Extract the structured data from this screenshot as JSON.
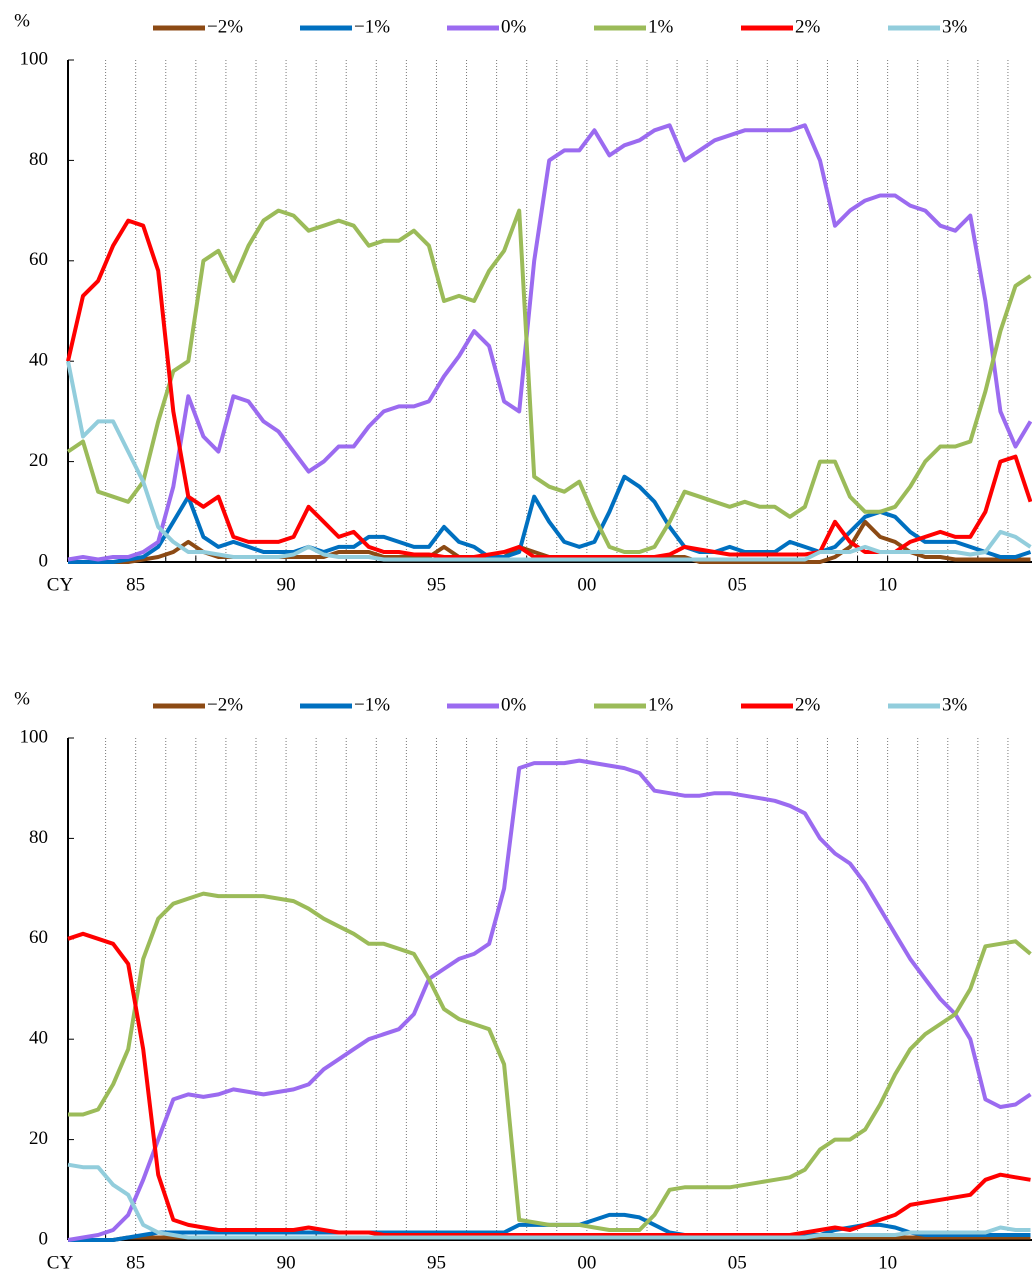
{
  "chart_data": [
    {
      "type": "line",
      "ylabel": "%",
      "xlabel": "CY",
      "legend": "top",
      "grid": true,
      "xlim": [
        1982.75,
        2014.8
      ],
      "ylim": [
        0,
        100
      ],
      "yticks": [
        0,
        20,
        40,
        60,
        80,
        100
      ],
      "xticks": [
        {
          "value": 1985,
          "label": "85"
        },
        {
          "value": 1990,
          "label": "90"
        },
        {
          "value": 1995,
          "label": "95"
        },
        {
          "value": 2000,
          "label": "00"
        },
        {
          "value": 2005,
          "label": "05"
        },
        {
          "value": 2010,
          "label": "10"
        }
      ],
      "xgrid": [
        1984,
        1985,
        1986,
        1987,
        1988,
        1989,
        1990,
        1991,
        1992,
        1993,
        1994,
        1995,
        1996,
        1997,
        1998,
        1999,
        2000,
        2001,
        2002,
        2003,
        2004,
        2005,
        2006,
        2007,
        2008,
        2009,
        2010,
        2011,
        2012,
        2013,
        2014
      ],
      "x": [
        1982.75,
        1983.25,
        1983.75,
        1984.25,
        1984.75,
        1985.25,
        1985.75,
        1986.25,
        1986.75,
        1987.25,
        1987.75,
        1988.25,
        1988.75,
        1989.25,
        1989.75,
        1990.25,
        1990.75,
        1991.25,
        1991.75,
        1992.25,
        1992.75,
        1993.25,
        1993.75,
        1994.25,
        1994.75,
        1995.25,
        1995.75,
        1996.25,
        1996.75,
        1997.25,
        1997.75,
        1998.25,
        1998.75,
        1999.25,
        1999.75,
        2000.25,
        2000.75,
        2001.25,
        2001.75,
        2002.25,
        2002.75,
        2003.25,
        2003.75,
        2004.25,
        2004.75,
        2005.25,
        2005.75,
        2006.25,
        2006.75,
        2007.25,
        2007.75,
        2008.25,
        2008.75,
        2009.25,
        2009.75,
        2010.25,
        2010.75,
        2011.25,
        2011.75,
        2012.25,
        2012.75,
        2013.25,
        2013.75,
        2014.25,
        2014.75
      ],
      "series": [
        {
          "name": "−2%",
          "color": "#8c4a14",
          "values": [
            0,
            0,
            0,
            0,
            0,
            0.5,
            1,
            2,
            4,
            2,
            1,
            1,
            1,
            1,
            1,
            1,
            1,
            1,
            2,
            2,
            2,
            1,
            1,
            1,
            1,
            3,
            1,
            1,
            1,
            1,
            3,
            2,
            1,
            1,
            1,
            1,
            1,
            1,
            1,
            1,
            1,
            1,
            0,
            0,
            0,
            0,
            0,
            0,
            0,
            0,
            0,
            1,
            3,
            8,
            5,
            4,
            2,
            1,
            1,
            0.5,
            0.5,
            0.5,
            0.5,
            0.5,
            0.5
          ]
        },
        {
          "name": "−1%",
          "color": "#0070c0",
          "values": [
            0,
            0,
            0,
            0,
            0.5,
            1,
            3,
            8,
            13,
            5,
            3,
            4,
            3,
            2,
            2,
            2,
            3,
            2,
            3,
            3,
            5,
            5,
            4,
            3,
            3,
            7,
            4,
            3,
            1,
            1,
            2,
            13,
            8,
            4,
            3,
            4,
            10,
            17,
            15,
            12,
            7,
            3,
            2,
            2,
            3,
            2,
            2,
            2,
            4,
            3,
            2,
            3,
            6,
            9,
            10,
            9,
            6,
            4,
            4,
            4,
            3,
            2,
            1,
            1,
            2
          ]
        },
        {
          "name": "0%",
          "color": "#9b6bf0",
          "values": [
            0.5,
            1,
            0.5,
            1,
            1,
            2,
            4,
            15,
            33,
            25,
            22,
            33,
            32,
            28,
            26,
            22,
            18,
            20,
            23,
            23,
            27,
            30,
            31,
            31,
            32,
            37,
            41,
            46,
            43,
            32,
            30,
            60,
            80,
            82,
            82,
            86,
            81,
            83,
            84,
            86,
            87,
            80,
            82,
            84,
            85,
            86,
            86,
            86,
            86,
            87,
            80,
            67,
            70,
            72,
            73,
            73,
            71,
            70,
            67,
            66,
            69,
            52,
            30,
            23,
            28
          ]
        },
        {
          "name": "1%",
          "color": "#9bbb59",
          "values": [
            22,
            24,
            14,
            13,
            12,
            16,
            28,
            38,
            40,
            60,
            62,
            56,
            63,
            68,
            70,
            69,
            66,
            67,
            68,
            67,
            63,
            64,
            64,
            66,
            63,
            52,
            53,
            52,
            58,
            62,
            70,
            17,
            15,
            14,
            16,
            9,
            3,
            2,
            2,
            3,
            8,
            14,
            13,
            12,
            11,
            12,
            11,
            11,
            9,
            11,
            20,
            20,
            13,
            10,
            10,
            11,
            15,
            20,
            23,
            23,
            24,
            34,
            46,
            55,
            57
          ]
        },
        {
          "name": "2%",
          "color": "#ff0000",
          "values": [
            40,
            53,
            56,
            63,
            68,
            67,
            58,
            30,
            13,
            11,
            13,
            5,
            4,
            4,
            4,
            5,
            11,
            8,
            5,
            6,
            3,
            2,
            2,
            1.5,
            1.5,
            1,
            1,
            1,
            1.5,
            2,
            3,
            1,
            1,
            1,
            1,
            1,
            1,
            1,
            1,
            1,
            1.5,
            3,
            2.5,
            2,
            1.5,
            1.5,
            1.5,
            1.5,
            1.5,
            1.5,
            2,
            8,
            4,
            2,
            2,
            2,
            4,
            5,
            6,
            5,
            5,
            10,
            20,
            21,
            12
          ]
        },
        {
          "name": "3%",
          "color": "#92cddc",
          "values": [
            40,
            25,
            28,
            28,
            22,
            16,
            7,
            4,
            2,
            2,
            1.5,
            1,
            1,
            1,
            1,
            1.5,
            3,
            1.5,
            1,
            1,
            1,
            0.5,
            0.5,
            0.5,
            0.5,
            0.5,
            0.5,
            0.5,
            0.5,
            0.5,
            0.5,
            0.5,
            0.5,
            0.5,
            0.5,
            0.5,
            0.5,
            0.5,
            0.5,
            0.5,
            0.5,
            0.5,
            0.5,
            0.5,
            0.5,
            0.5,
            0.5,
            0.5,
            0.5,
            0.5,
            2,
            2,
            2,
            3,
            2,
            2,
            2,
            2,
            2,
            2,
            1.5,
            2,
            6,
            5,
            3
          ]
        }
      ]
    },
    {
      "type": "line",
      "ylabel": "%",
      "xlabel": "CY",
      "legend": "top",
      "grid": true,
      "xlim": [
        1982.75,
        2014.8
      ],
      "ylim": [
        0,
        100
      ],
      "yticks": [
        0,
        20,
        40,
        60,
        80,
        100
      ],
      "xticks": [
        {
          "value": 1985,
          "label": "85"
        },
        {
          "value": 1990,
          "label": "90"
        },
        {
          "value": 1995,
          "label": "95"
        },
        {
          "value": 2000,
          "label": "00"
        },
        {
          "value": 2005,
          "label": "05"
        },
        {
          "value": 2010,
          "label": "10"
        }
      ],
      "xgrid": [
        1984,
        1985,
        1986,
        1987,
        1988,
        1989,
        1990,
        1991,
        1992,
        1993,
        1994,
        1995,
        1996,
        1997,
        1998,
        1999,
        2000,
        2001,
        2002,
        2003,
        2004,
        2005,
        2006,
        2007,
        2008,
        2009,
        2010,
        2011,
        2012,
        2013,
        2014
      ],
      "x": [
        1982.75,
        1983.25,
        1983.75,
        1984.25,
        1984.75,
        1985.25,
        1985.75,
        1986.25,
        1986.75,
        1987.25,
        1987.75,
        1988.25,
        1988.75,
        1989.25,
        1989.75,
        1990.25,
        1990.75,
        1991.25,
        1991.75,
        1992.25,
        1992.75,
        1993.25,
        1993.75,
        1994.25,
        1994.75,
        1995.25,
        1995.75,
        1996.25,
        1996.75,
        1997.25,
        1997.75,
        1998.25,
        1998.75,
        1999.25,
        1999.75,
        2000.25,
        2000.75,
        2001.25,
        2001.75,
        2002.25,
        2002.75,
        2003.25,
        2003.75,
        2004.25,
        2004.75,
        2005.25,
        2005.75,
        2006.25,
        2006.75,
        2007.25,
        2007.75,
        2008.25,
        2008.75,
        2009.25,
        2009.75,
        2010.25,
        2010.75,
        2011.25,
        2011.75,
        2012.25,
        2012.75,
        2013.25,
        2013.75,
        2014.25,
        2014.75
      ],
      "series": [
        {
          "name": "−2%",
          "color": "#8c4a14",
          "values": [
            0,
            0,
            0,
            0,
            0.5,
            0.5,
            0.5,
            0.5,
            0.5,
            0.5,
            0.5,
            0.5,
            0.5,
            0.5,
            0.5,
            0.5,
            0.5,
            0.5,
            0.5,
            0.5,
            0.5,
            0.5,
            0.5,
            0.5,
            0.5,
            0.5,
            0.5,
            0.5,
            0.5,
            0.5,
            0.5,
            0.5,
            0.5,
            0.5,
            0.5,
            0.5,
            0.5,
            0.5,
            0.5,
            0.5,
            0.5,
            0.5,
            0.5,
            0.5,
            0.5,
            0.5,
            0.5,
            0.5,
            0.5,
            0.5,
            0.5,
            0.5,
            0.5,
            0.5,
            0.5,
            0.5,
            0.5,
            0.5,
            0.5,
            0.5,
            0.5,
            0.5,
            0.5,
            0.5,
            0.5
          ]
        },
        {
          "name": "−1%",
          "color": "#0070c0",
          "values": [
            0,
            0,
            0,
            0,
            0.5,
            1,
            1.5,
            1.5,
            1.5,
            1.5,
            1.5,
            1.5,
            1.5,
            1.5,
            1.5,
            1.5,
            1.5,
            1.5,
            1.5,
            1.5,
            1.5,
            1.5,
            1.5,
            1.5,
            1.5,
            1.5,
            1.5,
            1.5,
            1.5,
            1.5,
            3,
            3,
            3,
            3,
            3,
            4,
            5,
            5,
            4.5,
            3,
            1.5,
            1,
            1,
            1,
            1,
            1,
            1,
            1,
            1,
            1,
            1,
            2,
            2.5,
            3,
            3,
            2.5,
            1.5,
            1,
            1,
            1,
            1,
            1,
            1,
            1,
            1
          ]
        },
        {
          "name": "0%",
          "color": "#9b6bf0",
          "values": [
            0,
            0.5,
            1,
            2,
            5,
            12,
            20,
            28,
            29,
            28.5,
            29,
            30,
            29.5,
            29,
            29.5,
            30,
            31,
            34,
            36,
            38,
            40,
            41,
            42,
            45,
            52,
            54,
            56,
            57,
            59,
            70,
            94,
            95,
            95,
            95,
            95.5,
            95,
            94.5,
            94,
            93,
            89.5,
            89,
            88.5,
            88.5,
            89,
            89,
            88.5,
            88,
            87.5,
            86.5,
            85,
            80,
            77,
            75,
            71,
            66,
            61,
            56,
            52,
            48,
            45,
            40,
            28,
            26.5,
            27,
            29
          ]
        },
        {
          "name": "1%",
          "color": "#9bbb59",
          "values": [
            25,
            25,
            26,
            31,
            38,
            56,
            64,
            67,
            68,
            69,
            68.5,
            68.5,
            68.5,
            68.5,
            68,
            67.5,
            66,
            64,
            62.5,
            61,
            59,
            59,
            58,
            57,
            52,
            46,
            44,
            43,
            42,
            35,
            4,
            3.5,
            3,
            3,
            3,
            2.5,
            2,
            2,
            2,
            5,
            10,
            10.5,
            10.5,
            10.5,
            10.5,
            11,
            11.5,
            12,
            12.5,
            14,
            18,
            20,
            20,
            22,
            27,
            33,
            38,
            41,
            43,
            45,
            50,
            58.5,
            59,
            59.5,
            57
          ]
        },
        {
          "name": "2%",
          "color": "#ff0000",
          "values": [
            60,
            61,
            60,
            59,
            55,
            38,
            13,
            4,
            3,
            2.5,
            2,
            2,
            2,
            2,
            2,
            2,
            2.5,
            2,
            1.5,
            1.5,
            1.5,
            1,
            1,
            1,
            1,
            1,
            1,
            1,
            1,
            1,
            1,
            1,
            1,
            1,
            1,
            1,
            1,
            1,
            1,
            1,
            1,
            1,
            1,
            1,
            1,
            1,
            1,
            1,
            1,
            1.5,
            2,
            2.5,
            2,
            3,
            4,
            5,
            7,
            7.5,
            8,
            8.5,
            9,
            12,
            13,
            12.5,
            12
          ]
        },
        {
          "name": "3%",
          "color": "#92cddc",
          "values": [
            15,
            14.5,
            14.5,
            11,
            9,
            3,
            1.5,
            1,
            0.5,
            0.5,
            0.5,
            0.5,
            0.5,
            0.5,
            0.5,
            0.5,
            0.5,
            0.5,
            0.5,
            0.5,
            0.5,
            0.5,
            0.5,
            0.5,
            0.5,
            0.5,
            0.5,
            0.5,
            0.5,
            0.5,
            0.5,
            0.5,
            0.5,
            0.5,
            0.5,
            0.5,
            0.5,
            0.5,
            0.5,
            0.5,
            0.5,
            0.5,
            0.5,
            0.5,
            0.5,
            0.5,
            0.5,
            0.5,
            0.5,
            0.5,
            1,
            1,
            1,
            1,
            1,
            1,
            1.5,
            1.5,
            1.5,
            1.5,
            1.5,
            1.5,
            2.5,
            2,
            2
          ]
        }
      ]
    }
  ]
}
